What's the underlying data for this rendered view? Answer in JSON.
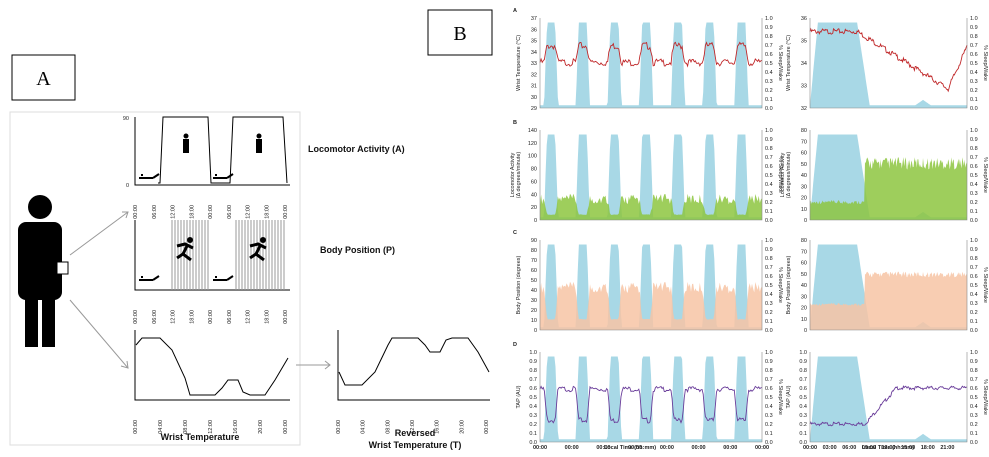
{
  "panel_labels": {
    "a": "A",
    "b": "B"
  },
  "panel_a": {
    "locomotor": {
      "yticks": [
        "90",
        "0"
      ],
      "xticks": [
        "00:00",
        "06:00",
        "12:00",
        "18:00",
        "00:00",
        "06:00",
        "12:00",
        "18:00",
        "00:00"
      ],
      "label": "Locomotor Activity (A)"
    },
    "position": {
      "xticks": [
        "00:00",
        "06:00",
        "12:00",
        "18:00",
        "00:00",
        "06:00",
        "12:00",
        "18:00",
        "00:00"
      ],
      "label": "Body Position (P)"
    },
    "temperature": {
      "xticks": [
        "00:00",
        "04:00",
        "08:00",
        "12:00",
        "16:00",
        "20:00",
        "00:00"
      ],
      "label": "Wrist Temperature"
    },
    "reversed": {
      "xticks": [
        "00:00",
        "04:00",
        "08:00",
        "12:00",
        "16:00",
        "20:00",
        "00:00"
      ],
      "label_line1": "Reversed",
      "label_line2": "Wrist Temperature (T)"
    }
  },
  "panel_b": {
    "x_axis_label": "Local Time (hh:mm)",
    "left_xticks": [
      "00:00",
      "00:00",
      "00:00",
      "00:00",
      "00:00",
      "00:00",
      "00:00",
      "00:00"
    ],
    "right_xticks": [
      "00:00",
      "03:00",
      "06:00",
      "09:00",
      "12:00",
      "15:00",
      "18:00",
      "21:00"
    ],
    "y2_label": "% Sleep/Wake",
    "y2_ticks": [
      "1.0",
      "0.9",
      "0.8",
      "0.7",
      "0.6",
      "0.5",
      "0.4",
      "0.3",
      "0.2",
      "0.1",
      "0.0"
    ],
    "rows": [
      {
        "letter": "A",
        "y_label": "Wrist Temperature (°C)",
        "left_yticks": [
          "37",
          "36",
          "35",
          "34",
          "33",
          "32",
          "31",
          "30",
          "29"
        ],
        "right_yticks": [
          "36",
          "35",
          "34",
          "33",
          "32"
        ]
      },
      {
        "letter": "B",
        "y_label": "Locomotor Activity",
        "y_label_2": "(Δ degrees/minute)",
        "left_yticks": [
          "140",
          "120",
          "100",
          "80",
          "60",
          "40",
          "20",
          "0"
        ],
        "right_yticks": [
          "80",
          "70",
          "60",
          "50",
          "40",
          "30",
          "20",
          "10",
          "0"
        ]
      },
      {
        "letter": "C",
        "y_label": "Body Position (degrees)",
        "left_yticks": [
          "90",
          "80",
          "70",
          "60",
          "50",
          "40",
          "30",
          "20",
          "10",
          "0"
        ],
        "right_yticks": [
          "80",
          "70",
          "60",
          "50",
          "40",
          "30",
          "20",
          "10",
          "0"
        ]
      },
      {
        "letter": "D",
        "y_label": "TAP (AU)",
        "left_yticks": [
          "1.0",
          "0.9",
          "0.8",
          "0.7",
          "0.6",
          "0.5",
          "0.4",
          "0.3",
          "0.2",
          "0.1",
          "0.0"
        ],
        "right_yticks": [
          "1.0",
          "0.9",
          "0.8",
          "0.7",
          "0.6",
          "0.5",
          "0.4",
          "0.3",
          "0.2",
          "0.1",
          "0.0"
        ]
      }
    ]
  }
}
